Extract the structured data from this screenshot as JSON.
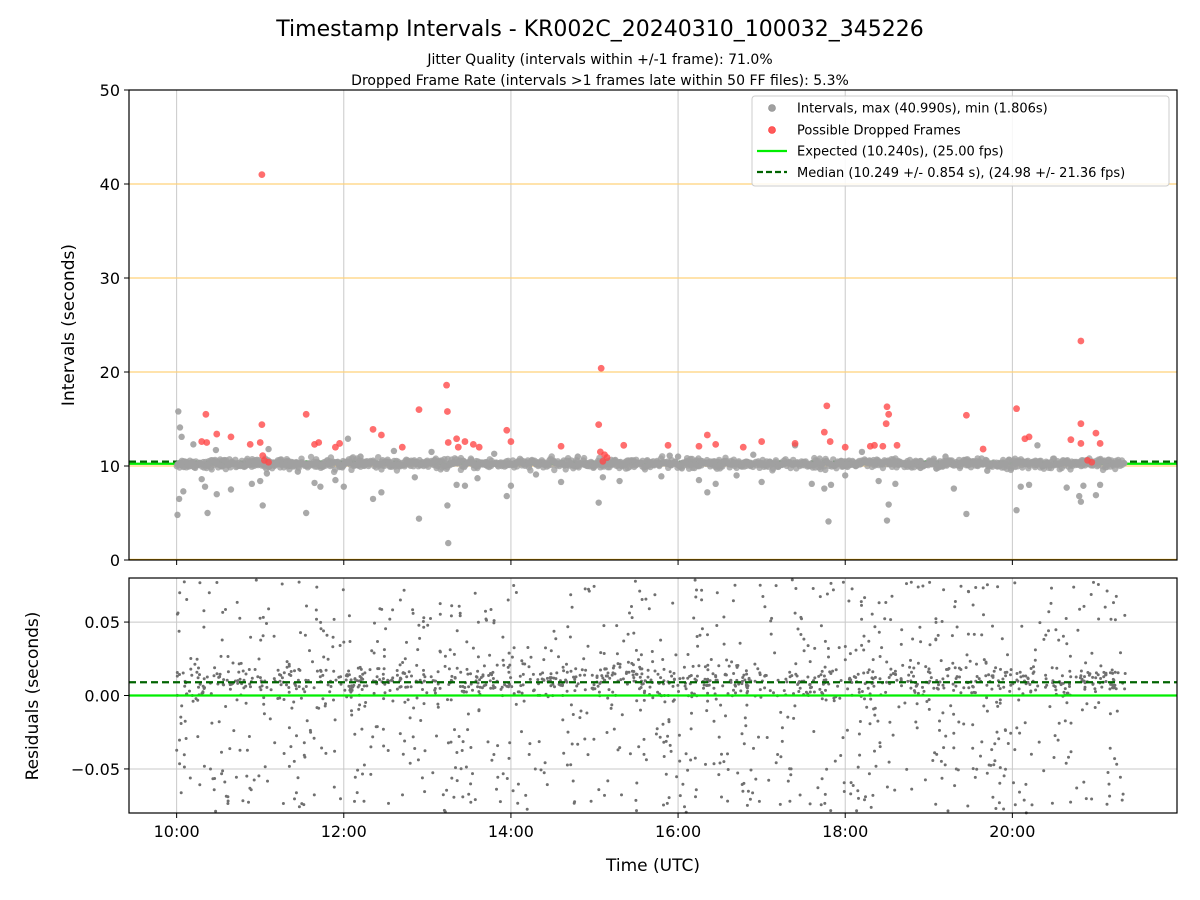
{
  "chart_data": [
    {
      "type": "scatter",
      "title": "Timestamp Intervals - KR002C_20240310_100032_345226",
      "subtitle_lines": [
        "Jitter Quality (intervals within +/-1 frame): 71.0%",
        "Dropped Frame Rate (intervals >1 frames late within 50 FF files): 5.3%"
      ],
      "xlabel": "",
      "ylabel": "Intervals (seconds)",
      "x_range_hours": [
        9.43,
        21.97
      ],
      "ylim": [
        0,
        50
      ],
      "yticks": [
        0,
        10,
        20,
        30,
        40,
        50
      ],
      "ytick_labels": [
        "0",
        "10",
        "20",
        "30",
        "40",
        "50"
      ],
      "horizontal_guides": [
        10,
        20,
        30,
        40
      ],
      "legend_position": "upper-right",
      "legend": [
        {
          "label": "Intervals, max (40.990s), min (1.806s)",
          "kind": "marker",
          "color": "#a0a0a0"
        },
        {
          "label": "Possible Dropped Frames",
          "kind": "marker",
          "color": "#ff5a5a"
        },
        {
          "label": "Expected (10.240s), (25.00 fps)",
          "kind": "line",
          "color": "#00ee00"
        },
        {
          "label": "Median (10.249 +/- 0.854 s), (24.98 +/- 21.36 fps)",
          "kind": "dashed",
          "color": "#006400"
        }
      ],
      "expected": 10.24,
      "median": 10.249,
      "series": [
        {
          "name": "Intervals, max (40.990s), min (1.806s)",
          "color": "#a0a0a0",
          "points": [
            [
              10.02,
              15.8
            ],
            [
              10.04,
              14.1
            ],
            [
              10.06,
              13.1
            ],
            [
              10.03,
              6.5
            ],
            [
              10.01,
              4.8
            ],
            [
              10.08,
              7.3
            ],
            [
              10.3,
              8.6
            ],
            [
              10.34,
              7.8
            ],
            [
              10.37,
              5.0
            ],
            [
              10.48,
              7.0
            ],
            [
              10.65,
              7.5
            ],
            [
              10.47,
              11.7
            ],
            [
              10.9,
              8.1
            ],
            [
              11.0,
              8.4
            ],
            [
              11.03,
              5.8
            ],
            [
              11.08,
              9.2
            ],
            [
              11.25,
              10.7
            ],
            [
              11.45,
              9.4
            ],
            [
              11.55,
              5.0
            ],
            [
              11.65,
              8.2
            ],
            [
              11.72,
              7.8
            ],
            [
              11.9,
              8.5
            ],
            [
              12.0,
              7.8
            ],
            [
              12.05,
              12.9
            ],
            [
              12.35,
              6.5
            ],
            [
              12.45,
              7.2
            ],
            [
              12.6,
              11.6
            ],
            [
              12.85,
              8.8
            ],
            [
              12.9,
              4.4
            ],
            [
              13.05,
              11.5
            ],
            [
              13.25,
              1.8
            ],
            [
              13.24,
              5.8
            ],
            [
              13.35,
              8.0
            ],
            [
              13.45,
              7.9
            ],
            [
              13.6,
              8.7
            ],
            [
              13.95,
              6.8
            ],
            [
              14.0,
              7.9
            ],
            [
              14.3,
              9.1
            ],
            [
              14.6,
              8.3
            ],
            [
              15.05,
              6.1
            ],
            [
              15.1,
              8.8
            ],
            [
              15.3,
              8.4
            ],
            [
              15.8,
              8.9
            ],
            [
              16.0,
              11.0
            ],
            [
              16.25,
              8.5
            ],
            [
              16.35,
              7.2
            ],
            [
              16.45,
              8.1
            ],
            [
              16.7,
              9.0
            ],
            [
              17.0,
              8.3
            ],
            [
              17.4,
              12.2
            ],
            [
              17.6,
              8.1
            ],
            [
              17.75,
              7.6
            ],
            [
              17.8,
              4.1
            ],
            [
              17.83,
              8.0
            ],
            [
              18.0,
              9.0
            ],
            [
              18.4,
              8.4
            ],
            [
              18.5,
              4.2
            ],
            [
              18.52,
              5.9
            ],
            [
              18.6,
              8.1
            ],
            [
              18.9,
              9.8
            ],
            [
              19.3,
              7.6
            ],
            [
              19.45,
              4.9
            ],
            [
              19.7,
              9.5
            ],
            [
              20.05,
              5.3
            ],
            [
              20.1,
              7.8
            ],
            [
              20.2,
              8.0
            ],
            [
              20.65,
              7.7
            ],
            [
              20.8,
              6.8
            ],
            [
              20.82,
              6.2
            ],
            [
              20.85,
              7.9
            ],
            [
              21.05,
              8.0
            ],
            [
              21.0,
              6.9
            ],
            [
              20.3,
              12.2
            ],
            [
              19.2,
              11.0
            ],
            [
              18.2,
              11.5
            ],
            [
              16.9,
              11.2
            ],
            [
              15.9,
              11.1
            ],
            [
              14.8,
              11.0
            ],
            [
              13.8,
              11.3
            ],
            [
              12.2,
              11.0
            ],
            [
              11.1,
              11.8
            ],
            [
              10.2,
              12.3
            ]
          ]
        },
        {
          "name": "Possible Dropped Frames",
          "color": "#ff5a5a",
          "points": [
            [
              11.02,
              41.0
            ],
            [
              20.82,
              23.3
            ],
            [
              15.08,
              20.4
            ],
            [
              13.23,
              18.6
            ],
            [
              13.24,
              15.8
            ],
            [
              12.9,
              16.0
            ],
            [
              17.78,
              16.4
            ],
            [
              18.5,
              16.3
            ],
            [
              18.52,
              15.5
            ],
            [
              20.05,
              16.1
            ],
            [
              11.55,
              15.5
            ],
            [
              10.35,
              15.5
            ],
            [
              19.45,
              15.4
            ],
            [
              11.02,
              14.4
            ],
            [
              15.05,
              14.4
            ],
            [
              18.49,
              14.5
            ],
            [
              20.82,
              14.5
            ],
            [
              13.95,
              13.8
            ],
            [
              12.35,
              13.9
            ],
            [
              17.75,
              13.6
            ],
            [
              16.35,
              13.3
            ],
            [
              21.0,
              13.5
            ],
            [
              10.48,
              13.4
            ],
            [
              10.65,
              13.1
            ],
            [
              12.45,
              13.3
            ],
            [
              13.35,
              12.9
            ],
            [
              13.45,
              12.6
            ],
            [
              14.0,
              12.6
            ],
            [
              17.0,
              12.6
            ],
            [
              17.4,
              12.4
            ],
            [
              17.82,
              12.6
            ],
            [
              20.2,
              13.1
            ],
            [
              20.7,
              12.8
            ],
            [
              20.82,
              12.4
            ],
            [
              21.05,
              12.4
            ],
            [
              10.3,
              12.6
            ],
            [
              10.36,
              12.5
            ],
            [
              10.88,
              12.3
            ],
            [
              11.0,
              12.5
            ],
            [
              11.65,
              12.3
            ],
            [
              11.7,
              12.5
            ],
            [
              11.9,
              12.0
            ],
            [
              11.95,
              12.4
            ],
            [
              12.7,
              12.0
            ],
            [
              13.25,
              12.5
            ],
            [
              13.37,
              12.0
            ],
            [
              13.55,
              12.3
            ],
            [
              13.62,
              12.0
            ],
            [
              14.6,
              12.1
            ],
            [
              15.35,
              12.2
            ],
            [
              15.88,
              12.2
            ],
            [
              16.25,
              12.1
            ],
            [
              16.45,
              12.3
            ],
            [
              16.78,
              12.0
            ],
            [
              18.0,
              12.0
            ],
            [
              18.3,
              12.1
            ],
            [
              18.35,
              12.2
            ],
            [
              18.45,
              12.1
            ],
            [
              18.62,
              12.2
            ],
            [
              19.65,
              11.8
            ],
            [
              20.15,
              12.9
            ],
            [
              15.12,
              11.2
            ],
            [
              15.15,
              10.9
            ],
            [
              11.05,
              10.6
            ],
            [
              11.1,
              10.4
            ],
            [
              15.1,
              10.5
            ],
            [
              20.9,
              10.6
            ],
            [
              20.95,
              10.4
            ],
            [
              11.03,
              11.1
            ],
            [
              15.07,
              11.5
            ]
          ]
        }
      ]
    },
    {
      "type": "scatter",
      "title": "",
      "xlabel": "Time (UTC)",
      "ylabel": "Residuals (seconds)",
      "x_range_hours": [
        9.43,
        21.97
      ],
      "ylim": [
        -0.08,
        0.08
      ],
      "yticks": [
        -0.05,
        0.0,
        0.05
      ],
      "ytick_labels": [
        "−0.05",
        "0.00",
        "0.05"
      ],
      "xticks_hours": [
        10,
        12,
        14,
        16,
        18,
        20
      ],
      "xtick_labels": [
        "10:00",
        "12:00",
        "14:00",
        "16:00",
        "18:00",
        "20:00"
      ],
      "expected_residual": 0.0,
      "median_residual": 0.009,
      "point_color": "#707070",
      "data_span_hours": [
        10.0,
        21.35
      ],
      "point_count": 1700
    }
  ]
}
